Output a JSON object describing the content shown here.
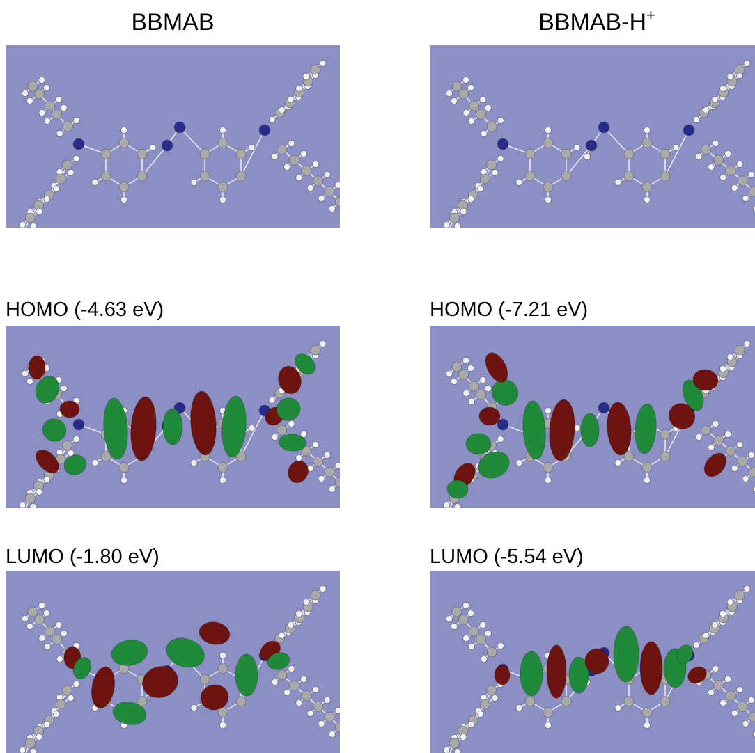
{
  "columns": [
    {
      "title": "BBMAB",
      "title_sup": ""
    },
    {
      "title": "BBMAB-H",
      "title_sup": "+"
    }
  ],
  "panels": {
    "bbmab_structure": {
      "label": ""
    },
    "bbmab_homo": {
      "label": "HOMO (-4.63 eV)",
      "energy_ev": -4.63
    },
    "bbmab_lumo": {
      "label": "LUMO (-1.80 eV)",
      "energy_ev": -1.8
    },
    "bbmabh_structure": {
      "label": ""
    },
    "bbmabh_homo": {
      "label": "HOMO (-7.21 eV)",
      "energy_ev": -7.21
    },
    "bbmabh_lumo": {
      "label": "LUMO (-5.54 eV)",
      "energy_ev": -5.54
    }
  },
  "colors": {
    "panel_background": "#8b8fc4",
    "carbon": "#a9a9a9",
    "hydrogen": "#f2f2f2",
    "nitrogen": "#262b8c",
    "bond": "#e8e8ee",
    "orbital_positive": "#1f8a3a",
    "orbital_negative": "#6e1410"
  }
}
